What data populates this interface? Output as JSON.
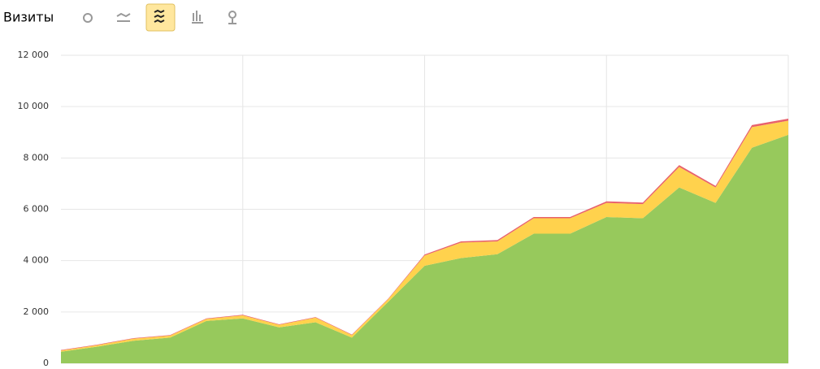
{
  "chart_data": {
    "type": "stacked-area",
    "title": "Визиты",
    "categories": [
      null,
      null,
      null,
      null,
      null,
      null,
      null,
      null,
      null,
      null,
      null,
      null,
      null,
      null,
      null,
      null,
      null,
      null,
      null,
      null,
      null
    ],
    "series": [
      {
        "color": "#97c95c",
        "values": [
          450,
          650,
          880,
          1000,
          1650,
          1750,
          1400,
          1600,
          1000,
          2400,
          3800,
          4100,
          4250,
          5050,
          5050,
          5700,
          5650,
          6850,
          6250,
          8400,
          8900
        ]
      },
      {
        "color": "#ffd24d",
        "values": [
          50,
          60,
          80,
          80,
          80,
          120,
          100,
          180,
          100,
          100,
          400,
          600,
          500,
          600,
          600,
          550,
          550,
          800,
          600,
          800,
          550
        ]
      },
      {
        "color": "#e8616b",
        "values": [
          20,
          20,
          20,
          20,
          20,
          20,
          20,
          20,
          20,
          20,
          40,
          50,
          50,
          50,
          50,
          60,
          60,
          70,
          60,
          80,
          80
        ]
      }
    ],
    "ylim": [
      0,
      12000
    ],
    "yticks": [
      0,
      {
        "value": 2000,
        "label": "2 000"
      },
      {
        "value": 4000,
        "label": "4 000"
      },
      {
        "value": 6000,
        "label": "6 000"
      },
      {
        "value": 8000,
        "label": "8 000"
      },
      {
        "value": 10000,
        "label": "10 000"
      },
      {
        "value": 12000,
        "label": "12 000"
      }
    ],
    "grid": true,
    "x_grid_every": 5
  }
}
